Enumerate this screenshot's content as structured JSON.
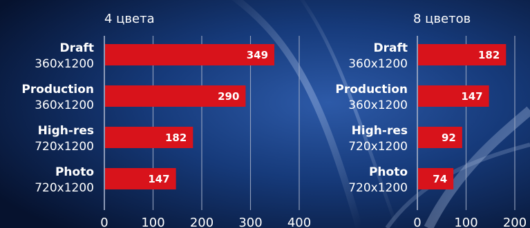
{
  "colors": {
    "bar": "#d8131b",
    "grid": "#9aa7c2",
    "text": "#ffffff",
    "background_dark": "#071431",
    "background_light": "#2f5fb0"
  },
  "chart_data": [
    {
      "type": "bar",
      "orientation": "horizontal",
      "title": "4 цвета",
      "categories": [
        {
          "name": "Draft",
          "resolution": "360x1200"
        },
        {
          "name": "Production",
          "resolution": "360x1200"
        },
        {
          "name": "High-res",
          "resolution": "720x1200"
        },
        {
          "name": "Photo",
          "resolution": "720x1200"
        }
      ],
      "values": [
        349,
        290,
        182,
        147
      ],
      "xlim": [
        0,
        400
      ],
      "xticks": [
        0,
        100,
        200,
        300,
        400
      ],
      "grid": true,
      "data_labels": true
    },
    {
      "type": "bar",
      "orientation": "horizontal",
      "title": "8 цветов",
      "categories": [
        {
          "name": "Draft",
          "resolution": "360x1200"
        },
        {
          "name": "Production",
          "resolution": "360x1200"
        },
        {
          "name": "High-res",
          "resolution": "720x1200"
        },
        {
          "name": "Photo",
          "resolution": "720x1200"
        }
      ],
      "values": [
        182,
        147,
        92,
        74
      ],
      "xlim": [
        0,
        200
      ],
      "xticks": [
        0,
        100,
        200
      ],
      "grid": true,
      "data_labels": true
    }
  ]
}
